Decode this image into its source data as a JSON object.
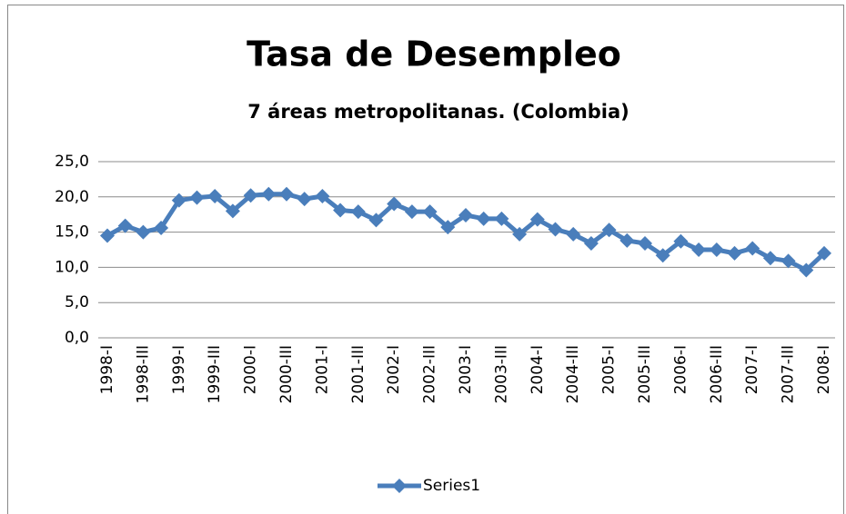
{
  "chart_data": {
    "type": "line",
    "title": "Tasa de Desempleo",
    "subtitle": "7 áreas metropolitanas. (Colombia)",
    "categories": [
      "1998-I",
      null,
      "1998-III",
      null,
      "1999-I",
      null,
      "1999-III",
      null,
      "2000-I",
      null,
      "2000-III",
      null,
      "2001-I",
      null,
      "2001-III",
      null,
      "2002-I",
      null,
      "2002-III",
      null,
      "2003-I",
      null,
      "2003-III",
      null,
      "2004-I",
      null,
      "2004-III",
      null,
      "2005-I",
      null,
      "2005-III",
      null,
      "2006-I",
      null,
      "2006-III",
      null,
      "2007-I",
      null,
      "2007-III",
      null,
      "2008-I"
    ],
    "series": [
      {
        "name": "Series1",
        "color": "#4a7ebb",
        "values": [
          14.5,
          15.9,
          15.0,
          15.6,
          19.5,
          19.9,
          20.1,
          18.0,
          20.2,
          20.4,
          20.4,
          19.7,
          20.1,
          18.1,
          17.9,
          16.7,
          19.0,
          17.9,
          17.9,
          15.7,
          17.4,
          16.9,
          16.9,
          14.7,
          16.8,
          15.4,
          14.7,
          13.4,
          15.3,
          13.8,
          13.4,
          11.7,
          13.7,
          12.5,
          12.5,
          12.0,
          12.7,
          11.3,
          10.9,
          9.6,
          12.0
        ]
      }
    ],
    "ylim": [
      0,
      25
    ],
    "yticks": [
      {
        "value": 0,
        "label": "0,0"
      },
      {
        "value": 5,
        "label": "5,0"
      },
      {
        "value": 10,
        "label": "10,0"
      },
      {
        "value": 15,
        "label": "15,0"
      },
      {
        "value": 20,
        "label": "20,0"
      },
      {
        "value": 25,
        "label": "25,0"
      }
    ],
    "grid": true,
    "legend": "bottom"
  }
}
